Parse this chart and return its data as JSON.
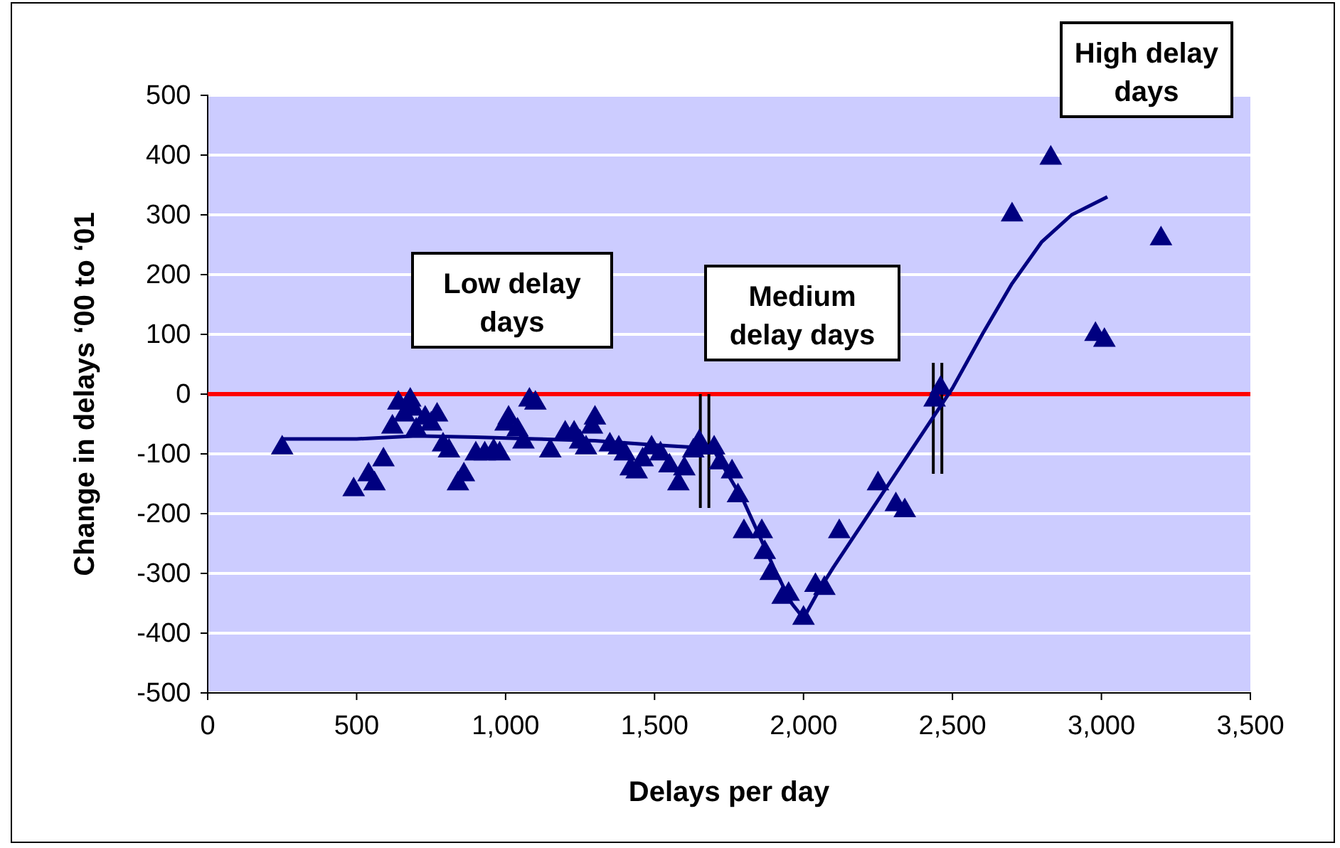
{
  "chart_data": {
    "type": "scatter",
    "xlabel": "Delays per day",
    "ylabel": "Change in delays ‘00 to ‘01",
    "xlim": [
      0,
      3500
    ],
    "ylim": [
      -500,
      500
    ],
    "xticks": [
      0,
      {
        "value": 500,
        "label": "500"
      },
      {
        "value": 1000,
        "label": "1,000"
      },
      {
        "value": 1500,
        "label": "1,500"
      },
      {
        "value": 2000,
        "label": "2,000"
      },
      {
        "value": 2500,
        "label": "2,500"
      },
      {
        "value": 3000,
        "label": "3,000"
      },
      {
        "value": 3500,
        "label": "3,500"
      }
    ],
    "yticks": [
      -500,
      -400,
      -300,
      -200,
      -100,
      0,
      100,
      200,
      300,
      400,
      500
    ],
    "grid": "y",
    "marker": "triangle",
    "ref_lines": [
      {
        "axis": "y",
        "value": 0,
        "color": "#ff0000"
      }
    ],
    "annotations": [
      "Low delay days",
      "Medium delay days",
      "High delay days"
    ],
    "series": [
      {
        "color": "#000080",
        "x": [
          250,
          490,
          540,
          560,
          590,
          620,
          640,
          660,
          680,
          690,
          700,
          730,
          750,
          770,
          790,
          810,
          840,
          860,
          900,
          930,
          960,
          980,
          1000,
          1010,
          1040,
          1060,
          1080,
          1100,
          1150,
          1200,
          1230,
          1250,
          1270,
          1290,
          1300,
          1350,
          1380,
          1400,
          1420,
          1440,
          1460,
          1490,
          1520,
          1550,
          1580,
          1600,
          1630,
          1650,
          1660,
          1700,
          1720,
          1760,
          1780,
          1800,
          1860,
          1870,
          1890,
          1930,
          1950,
          2000,
          2040,
          2070,
          2120,
          2250,
          2310,
          2340,
          2440,
          2460,
          2700,
          2830,
          2980,
          3010,
          3200
        ],
        "values": [
          -90,
          -160,
          -135,
          -150,
          -110,
          -55,
          -15,
          -35,
          -10,
          -25,
          -60,
          -40,
          -50,
          -35,
          -85,
          -95,
          -150,
          -135,
          -100,
          -100,
          -95,
          -100,
          -50,
          -40,
          -60,
          -80,
          -10,
          -15,
          -95,
          -65,
          -65,
          -80,
          -90,
          -55,
          -40,
          -85,
          -90,
          -100,
          -125,
          -130,
          -110,
          -90,
          -100,
          -120,
          -150,
          -125,
          -95,
          -80,
          -90,
          -90,
          -115,
          -130,
          -170,
          -230,
          -230,
          -265,
          -300,
          -340,
          -335,
          -375,
          -320,
          -325,
          -230,
          -150,
          -185,
          -195,
          -10,
          10,
          300,
          395,
          100,
          90,
          260
        ]
      },
      {
        "type": "line",
        "color": "#000080",
        "line_style": "solid",
        "marker": "none",
        "x": [
          250,
          500,
          700,
          900,
          1100,
          1300,
          1500,
          1660,
          1700,
          1800,
          1900,
          1960,
          2000,
          2050,
          2100,
          2200,
          2300,
          2400,
          2500,
          2600,
          2700,
          2800,
          2900,
          3020
        ],
        "values": [
          -75,
          -75,
          -70,
          -72,
          -75,
          -78,
          -85,
          -90,
          -95,
          -180,
          -290,
          -350,
          -375,
          -330,
          -290,
          -215,
          -140,
          -65,
          10,
          100,
          185,
          255,
          300,
          330
        ]
      }
    ]
  }
}
